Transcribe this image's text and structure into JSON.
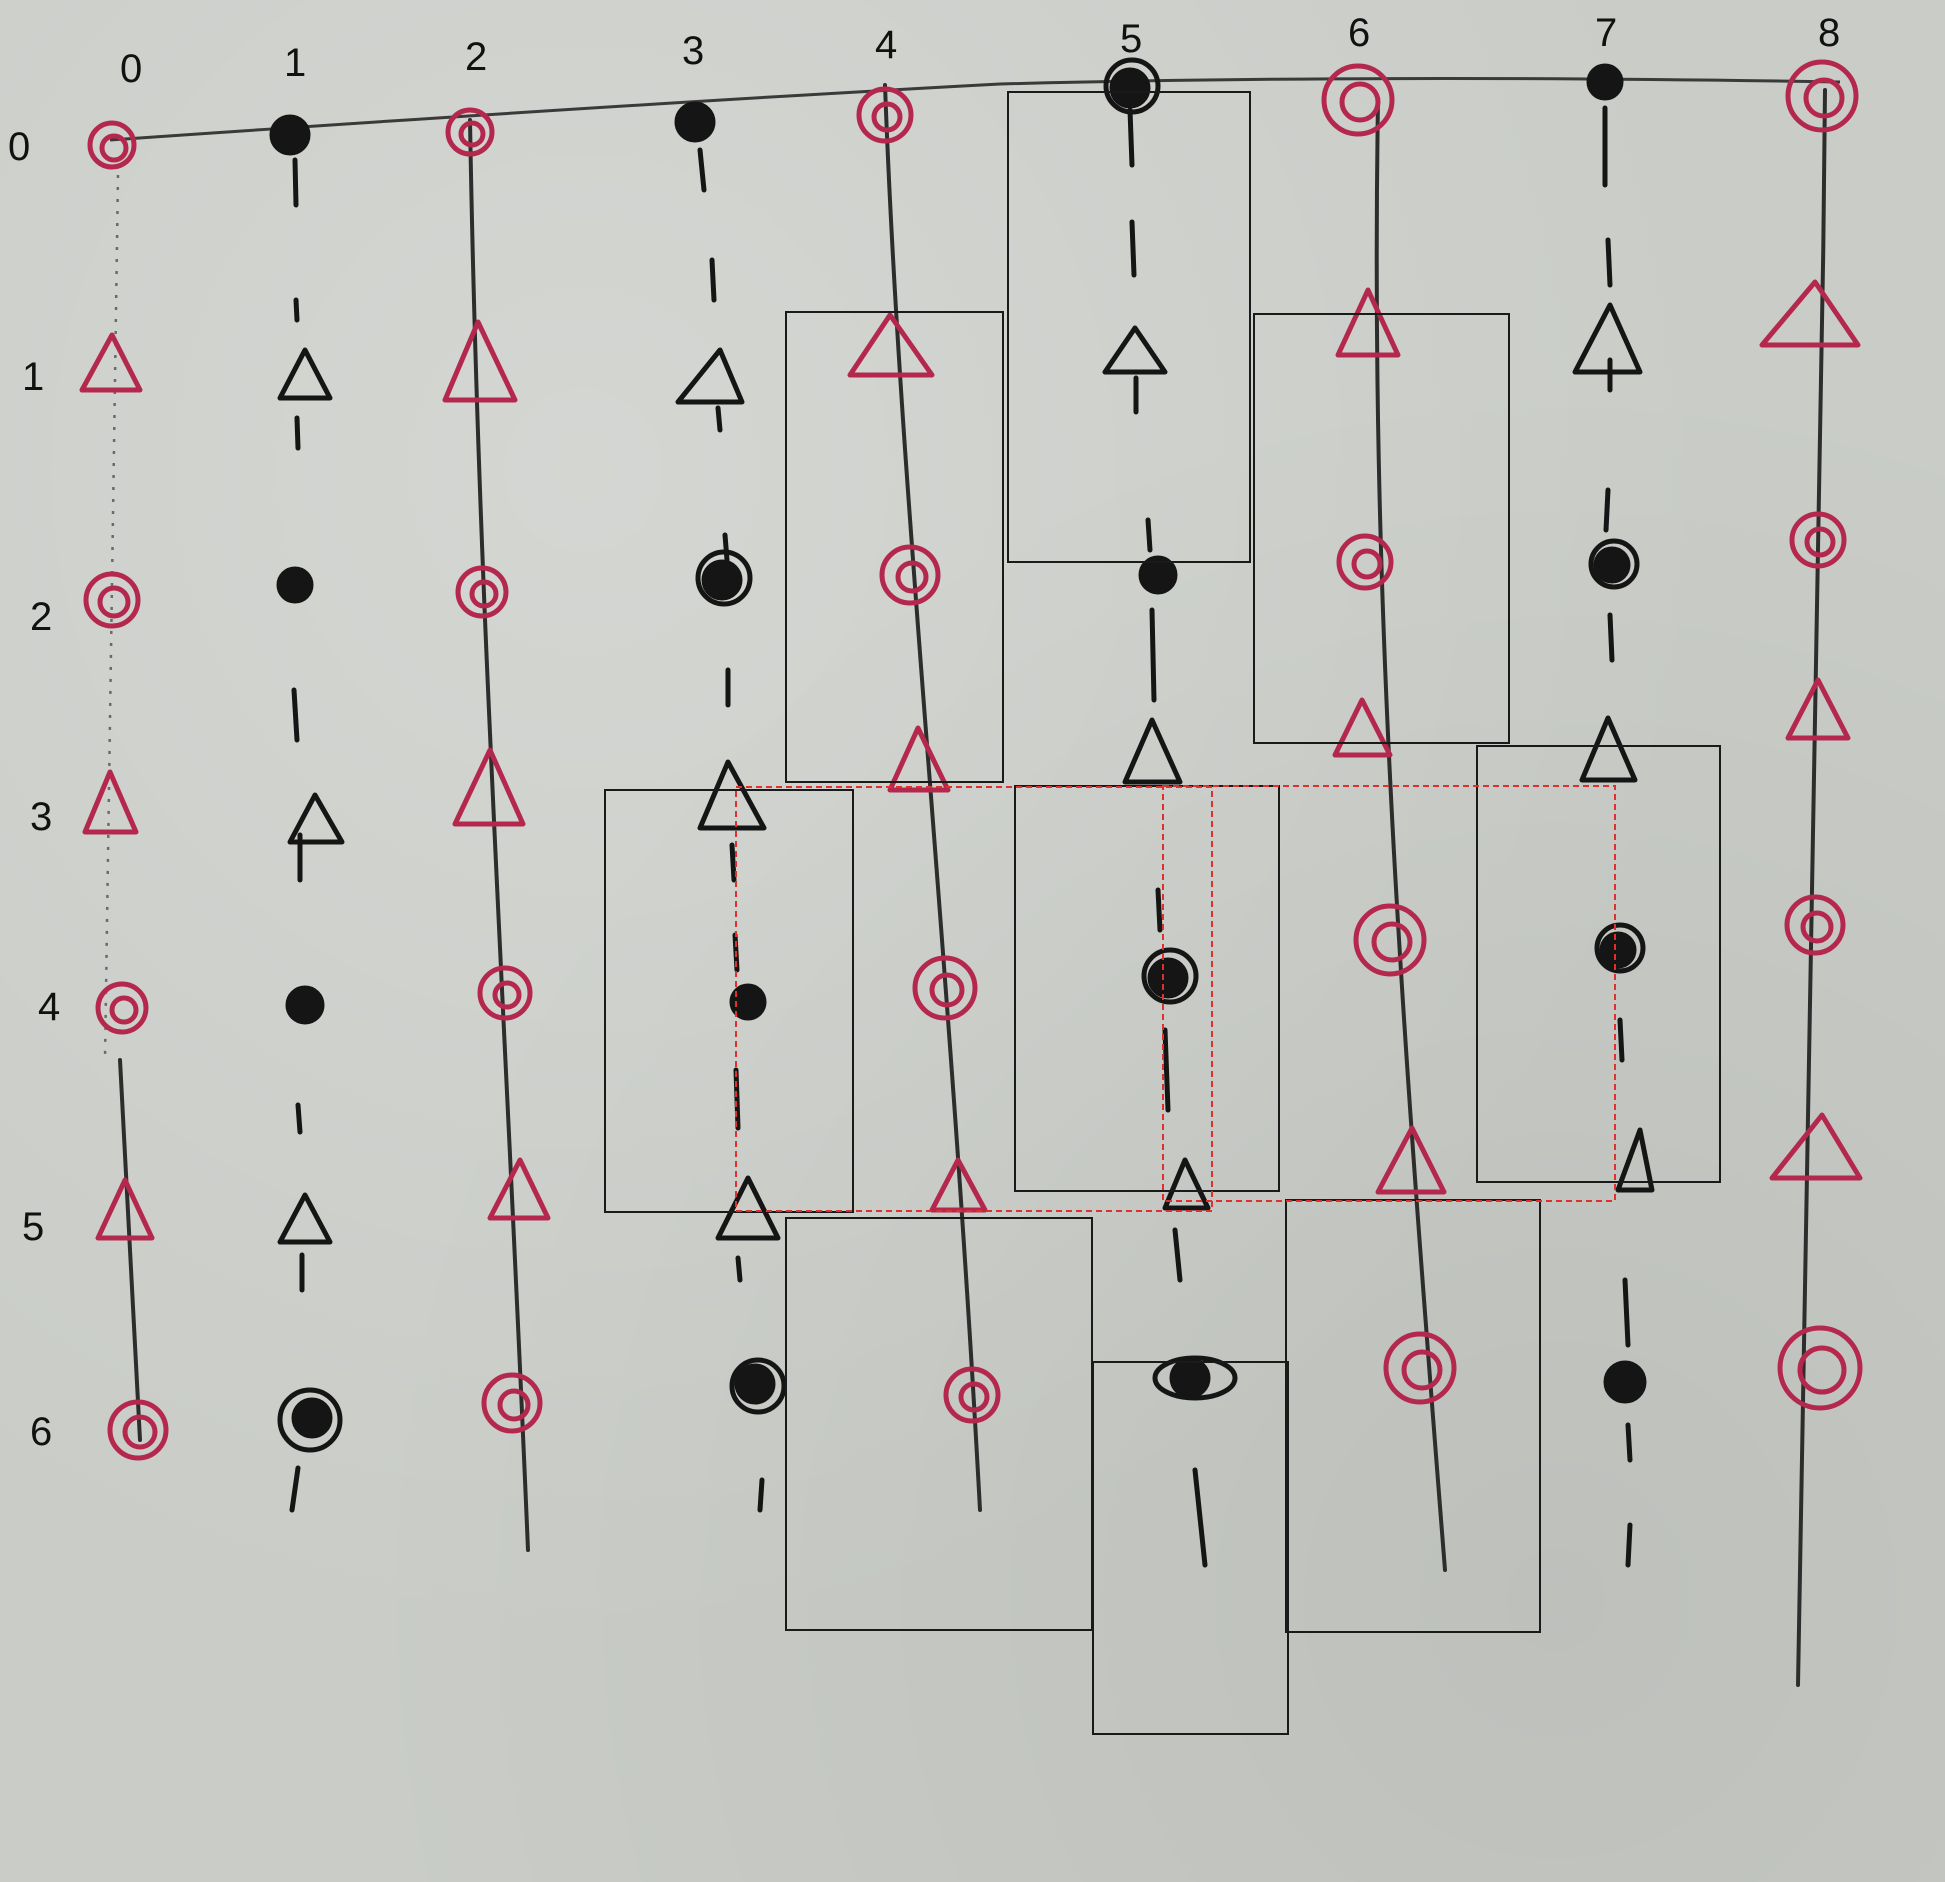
{
  "column_labels": [
    "0",
    "1",
    "2",
    "3",
    "4",
    "5",
    "6",
    "7",
    "8"
  ],
  "row_labels": [
    "0",
    "1",
    "2",
    "3",
    "4",
    "5",
    "6"
  ],
  "colors": {
    "red_ink": "#b4284e",
    "black_ink": "#151515",
    "box_outline": "#1a1a1a",
    "box_red_dashed": "#e0302e",
    "paper": "#c9ccc7"
  },
  "grid": {
    "columns": [
      {
        "col": "0",
        "ink": "red",
        "line": "dotted-then-solid",
        "symbols": [
          "circle",
          "triangle",
          "circle",
          "triangle",
          "circle",
          "triangle",
          "circle"
        ]
      },
      {
        "col": "1",
        "ink": "black",
        "line": "dashed",
        "symbols": [
          "dot",
          "triangle",
          "dot",
          "triangle",
          "dot",
          "triangle",
          "dot"
        ]
      },
      {
        "col": "2",
        "ink": "red",
        "line": "solid",
        "symbols": [
          "circle",
          "triangle",
          "circle",
          "triangle",
          "circle",
          "triangle",
          "circle"
        ]
      },
      {
        "col": "3",
        "ink": "black",
        "line": "dashed",
        "symbols": [
          "dot",
          "triangle",
          "dot",
          "triangle",
          "dot",
          "triangle",
          "dot"
        ]
      },
      {
        "col": "4",
        "ink": "red",
        "line": "solid",
        "symbols": [
          "circle",
          "triangle",
          "circle",
          "triangle",
          "circle",
          "triangle",
          "circle"
        ]
      },
      {
        "col": "5",
        "ink": "black",
        "line": "dashed",
        "symbols": [
          "dot",
          "triangle",
          "dot",
          "triangle",
          "dot",
          "triangle",
          "dot"
        ]
      },
      {
        "col": "6",
        "ink": "red",
        "line": "solid",
        "symbols": [
          "circle",
          "triangle",
          "circle",
          "triangle",
          "circle",
          "triangle",
          "circle"
        ]
      },
      {
        "col": "7",
        "ink": "black",
        "line": "dashed",
        "symbols": [
          "dot",
          "triangle",
          "dot",
          "triangle",
          "dot",
          "triangle",
          "dot"
        ]
      },
      {
        "col": "8",
        "ink": "red",
        "line": "solid",
        "symbols": [
          "circle",
          "triangle",
          "circle",
          "triangle",
          "circle",
          "triangle",
          "circle"
        ]
      }
    ]
  },
  "highlight_boxes": {
    "black_outline_count": 9,
    "red_dashed_count": 2
  }
}
